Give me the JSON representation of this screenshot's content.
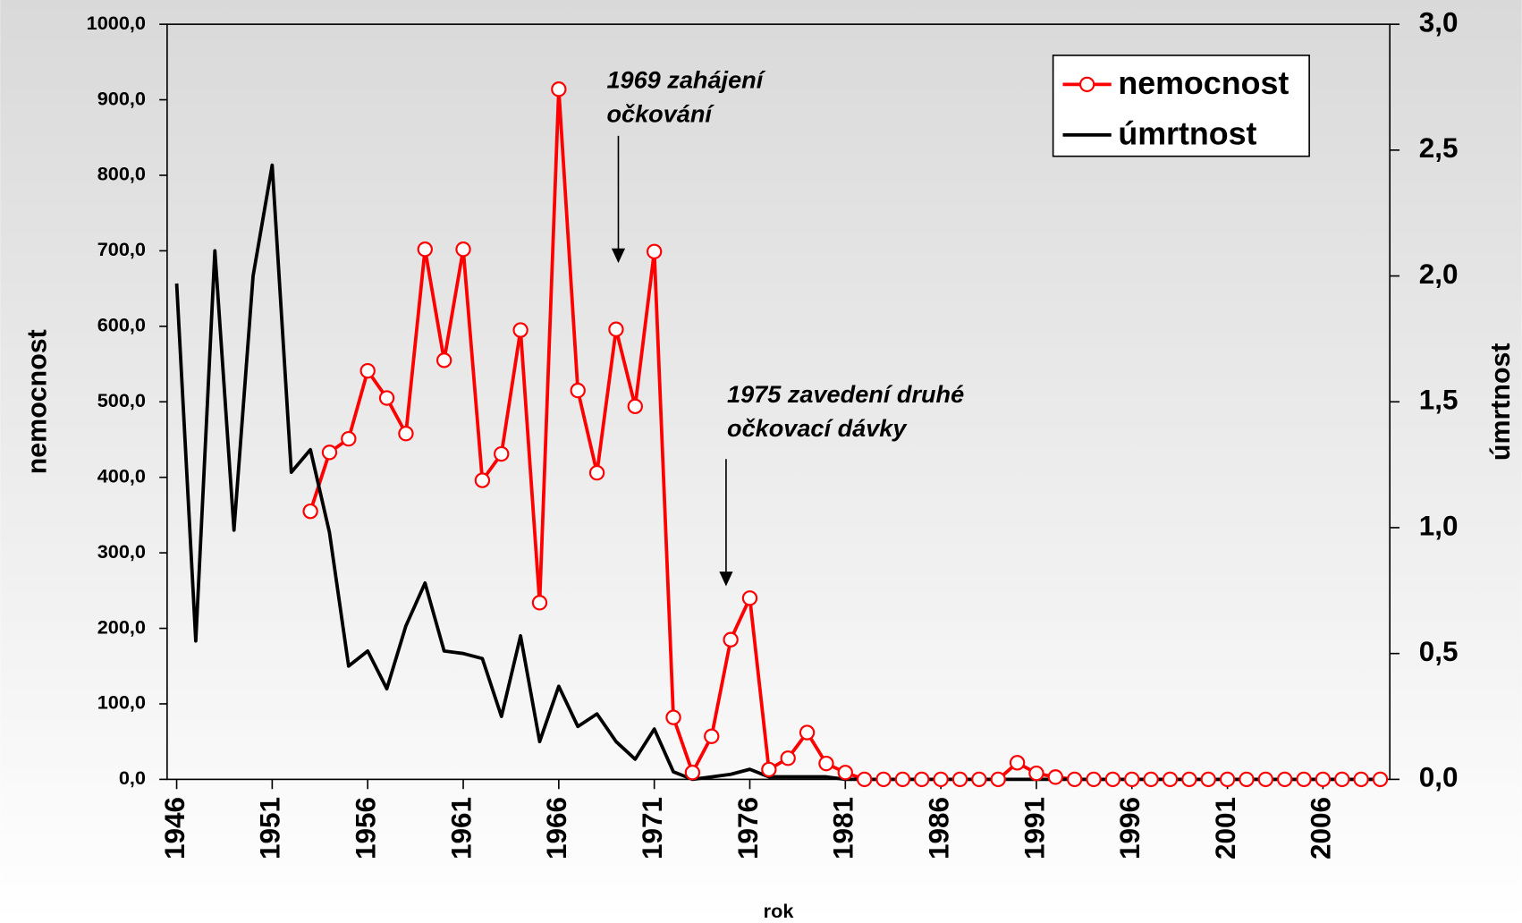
{
  "chart_data": {
    "type": "line",
    "x_label": "rok",
    "y_label": "nemocnost",
    "y2_label": "úmrtnost",
    "x": [
      1946,
      1947,
      1948,
      1949,
      1950,
      1951,
      1952,
      1953,
      1954,
      1955,
      1956,
      1957,
      1958,
      1959,
      1960,
      1961,
      1962,
      1963,
      1964,
      1965,
      1966,
      1967,
      1968,
      1969,
      1970,
      1971,
      1972,
      1973,
      1974,
      1975,
      1976,
      1977,
      1978,
      1979,
      1980,
      1981,
      1982,
      1983,
      1984,
      1985,
      1986,
      1987,
      1988,
      1989,
      1990,
      1991,
      1992,
      1993,
      1994,
      1995,
      1996,
      1997,
      1998,
      1999,
      2000,
      2001,
      2002,
      2003,
      2004,
      2005,
      2006,
      2007,
      2008,
      2009
    ],
    "series": [
      {
        "name": "nemocnost",
        "color": "#ff0000",
        "marker": "circle",
        "values": [
          null,
          null,
          null,
          null,
          null,
          null,
          null,
          355,
          433,
          451,
          541,
          505,
          458,
          702,
          555,
          702,
          396,
          431,
          595,
          234,
          914,
          515,
          406,
          596,
          494,
          699,
          82,
          9,
          57,
          185,
          240,
          13,
          28,
          62,
          21,
          9,
          0,
          0,
          0,
          0,
          0,
          0,
          0,
          0,
          22,
          8,
          3,
          0,
          0,
          0,
          0,
          0,
          0,
          0,
          0,
          0,
          0,
          0,
          0,
          0,
          0,
          0,
          0,
          0
        ]
      },
      {
        "name": "úmrtnost",
        "color": "#000000",
        "axis": "y2",
        "values": [
          1.97,
          0.55,
          2.1,
          0.99,
          2.0,
          2.44,
          1.22,
          1.31,
          0.98,
          0.45,
          0.51,
          0.36,
          0.61,
          0.78,
          0.51,
          0.5,
          0.48,
          0.25,
          0.57,
          0.15,
          0.37,
          0.21,
          0.26,
          0.15,
          0.08,
          0.2,
          0.03,
          0,
          0.01,
          0.02,
          0.04,
          0.01,
          0.01,
          0.01,
          0.01,
          0,
          0,
          0,
          0,
          0,
          0,
          0,
          0,
          0,
          0,
          0,
          0,
          0,
          0,
          0,
          0,
          0,
          0,
          0,
          0,
          0,
          0,
          0,
          0,
          0,
          0,
          0,
          0,
          0
        ]
      }
    ],
    "xlim": [
      1945.5,
      2009.5
    ],
    "xticks": [
      1946,
      1951,
      1956,
      1961,
      1966,
      1971,
      1976,
      1981,
      1986,
      1991,
      1996,
      2001,
      2006
    ],
    "ylim": [
      0,
      1000
    ],
    "yticks": [
      {
        "value": 0,
        "label": "0,0"
      },
      {
        "value": 100,
        "label": "100,0"
      },
      {
        "value": 200,
        "label": "200,0"
      },
      {
        "value": 300,
        "label": "300,0"
      },
      {
        "value": 400,
        "label": "400,0"
      },
      {
        "value": 500,
        "label": "500,0"
      },
      {
        "value": 600,
        "label": "600,0"
      },
      {
        "value": 700,
        "label": "700,0"
      },
      {
        "value": 800,
        "label": "800,0"
      },
      {
        "value": 900,
        "label": "900,0"
      },
      {
        "value": 1000,
        "label": "1000,0"
      }
    ],
    "y2lim": [
      0,
      3
    ],
    "y2ticks": [
      {
        "value": 0,
        "label": "0,0"
      },
      {
        "value": 0.5,
        "label": "0,5"
      },
      {
        "value": 1,
        "label": "1,0"
      },
      {
        "value": 1.5,
        "label": "1,5"
      },
      {
        "value": 2,
        "label": "2,0"
      },
      {
        "value": 2.5,
        "label": "2,5"
      },
      {
        "value": 3,
        "label": "3,0"
      }
    ],
    "annotations": [
      {
        "lines": [
          "1969 zahájení",
          "očkování"
        ]
      },
      {
        "lines": [
          "1975 zavedení druhé",
          "očkovací dávky"
        ]
      }
    ],
    "legend": "upper right",
    "grid": false
  }
}
